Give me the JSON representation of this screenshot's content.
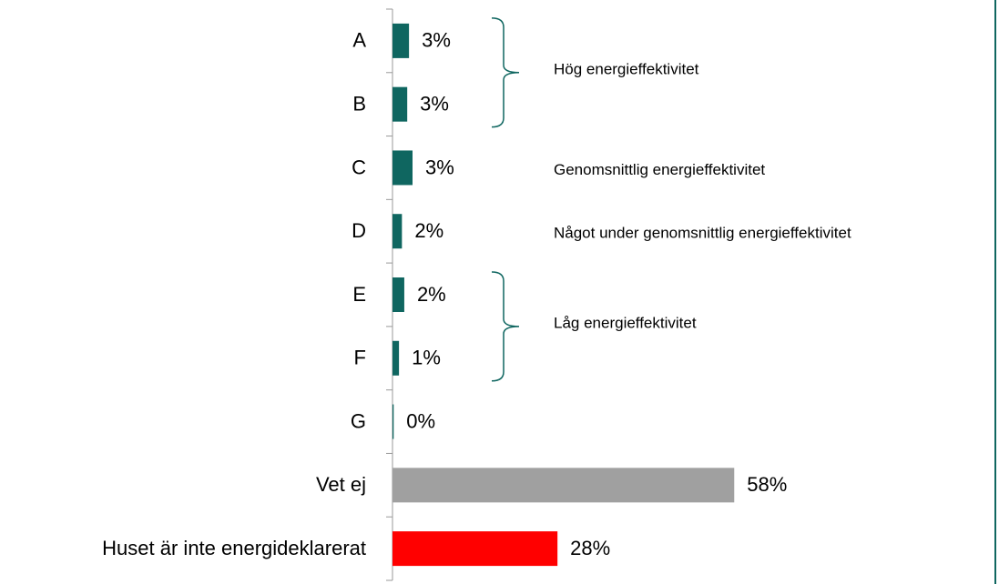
{
  "chart_data": {
    "type": "hbar",
    "categories": [
      "A",
      "B",
      "C",
      "D",
      "E",
      "F",
      "G",
      "Vet ej",
      "Huset är inte energideklarerat"
    ],
    "values": [
      2.8,
      2.5,
      3.4,
      1.6,
      2.0,
      1.1,
      0.2,
      58,
      28
    ],
    "value_labels": [
      "3%",
      "3%",
      "3%",
      "2%",
      "2%",
      "1%",
      "0%",
      "58%",
      "28%"
    ],
    "colors": [
      "#0f6660",
      "#0f6660",
      "#0f6660",
      "#0f6660",
      "#0f6660",
      "#0f6660",
      "#0f6660",
      "#a0a0a0",
      "#ff0000"
    ],
    "annotations": [
      {
        "text": "Hög energieffektivitet",
        "span": [
          "A",
          "B"
        ]
      },
      {
        "text": "Genomsnittlig energieffektivitet",
        "span": [
          "C"
        ]
      },
      {
        "text": "Något under genomsnittlig energieffektivitet",
        "span": [
          "D"
        ]
      },
      {
        "text": "Låg energieffektivitet",
        "span": [
          "E",
          "F"
        ]
      }
    ]
  }
}
